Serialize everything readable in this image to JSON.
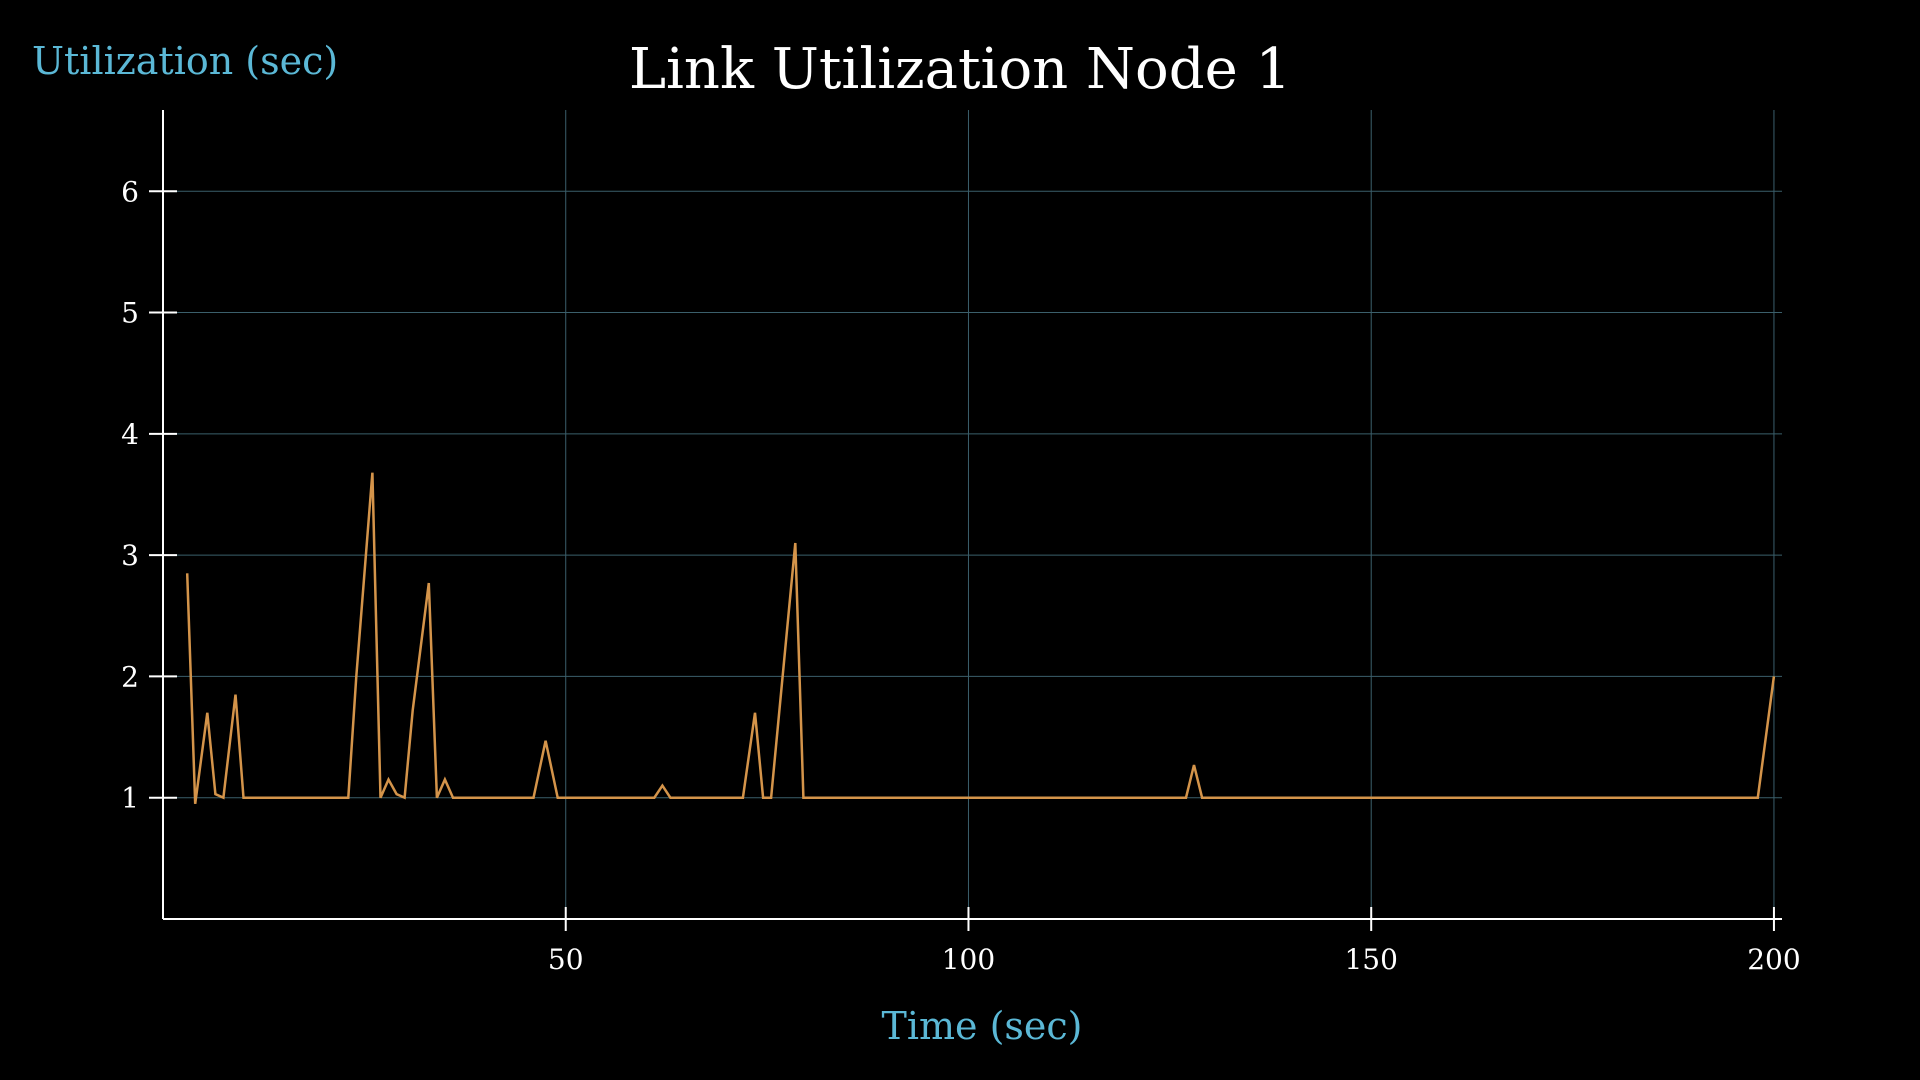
{
  "colors": {
    "background": "#000000",
    "axis": "#ffffff",
    "grid": "#3b5f6b",
    "line": "#d4944a",
    "label": "#5bb8d6",
    "text": "#ffffff"
  },
  "chart_data": {
    "type": "line",
    "title": "Link Utilization Node 1",
    "xlabel": "Time (sec)",
    "ylabel": "Utilization (sec)",
    "xlim": [
      0,
      201
    ],
    "ylim": [
      0,
      6.67
    ],
    "xticks": [
      50,
      100,
      150,
      200
    ],
    "yticks": [
      1,
      2,
      3,
      4,
      5,
      6
    ],
    "grid": true,
    "series": [
      {
        "x": [
          3,
          4,
          5.5,
          6.5,
          7.5,
          9,
          10,
          23,
          24,
          26,
          27,
          28,
          29,
          30,
          31,
          33,
          34,
          35,
          36,
          46,
          47.5,
          49,
          61,
          62,
          63,
          72,
          73.5,
          74.5,
          75.5,
          78.5,
          79.5,
          127,
          128,
          129,
          198,
          200
        ],
        "y": [
          2.85,
          0.95,
          1.7,
          1.03,
          1.0,
          1.85,
          1.0,
          1.0,
          2.0,
          3.68,
          1.0,
          1.15,
          1.03,
          1.0,
          1.72,
          2.77,
          1.0,
          1.15,
          1.0,
          1.0,
          1.47,
          1.0,
          1.0,
          1.1,
          1.0,
          1.0,
          1.7,
          1.0,
          1.0,
          3.1,
          1.0,
          1.0,
          1.27,
          1.0,
          1.0,
          2.0
        ]
      }
    ]
  }
}
